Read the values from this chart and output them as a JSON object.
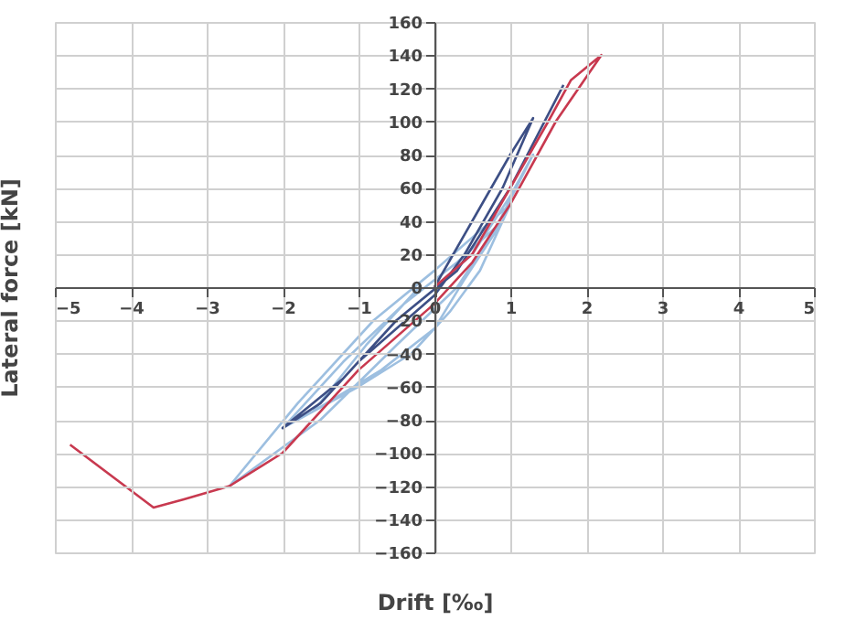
{
  "chart_data": {
    "type": "line",
    "xlabel": "Drift [‰]",
    "ylabel": "Lateral force [kN]",
    "xlim": [
      -5,
      5
    ],
    "xticks": [
      -5,
      -4,
      -3,
      -2,
      -1,
      0,
      1,
      2,
      3,
      4,
      5
    ],
    "ylim": [
      -160,
      160
    ],
    "yticks": [
      -160,
      -140,
      -120,
      -100,
      -80,
      -60,
      -40,
      -20,
      0,
      20,
      40,
      60,
      80,
      100,
      120,
      140,
      160
    ],
    "grid": true,
    "marker": "none",
    "line_style": "solid",
    "series": [
      {
        "color": "#9dbfe0",
        "x": [
          0,
          0.5,
          1,
          1.3,
          0.8,
          0.3,
          -0.5,
          -1.5,
          -2.7,
          -1.8,
          -0.8,
          0,
          0.5,
          1,
          0.6,
          0.2,
          -0.3,
          -1,
          -2,
          -1.2,
          -0.4,
          0.3,
          0.9,
          0.4,
          0,
          -0.7,
          -1.6,
          -0.9,
          -0.2
        ],
        "values": [
          0,
          20,
          55,
          80,
          35,
          0,
          -35,
          -80,
          -120,
          -70,
          -20,
          10,
          30,
          50,
          10,
          -15,
          -40,
          -60,
          -85,
          -45,
          -10,
          15,
          40,
          5,
          -25,
          -50,
          -75,
          -35,
          0
        ]
      },
      {
        "color": "#3d4f85",
        "x": [
          0,
          0.5,
          1,
          1.3,
          0.9,
          0.4,
          0,
          -0.5,
          -1,
          -1.5,
          -2,
          -1.2,
          -0.5,
          0.3,
          1,
          1.7
        ],
        "values": [
          0,
          40,
          80,
          102,
          60,
          20,
          -5,
          -25,
          -45,
          -70,
          -85,
          -55,
          -20,
          10,
          60,
          122
        ]
      },
      {
        "color": "#c8394f",
        "x": [
          0,
          0.5,
          1,
          1.5,
          1.8,
          2.2,
          1.6,
          1,
          0.5,
          0,
          -0.5,
          -1,
          -1.5,
          -2,
          -2.7,
          -3.3,
          -3.7,
          -4.8
        ],
        "values": [
          0,
          20,
          60,
          100,
          125,
          140,
          100,
          50,
          15,
          -10,
          -30,
          -50,
          -75,
          -100,
          -120,
          -128,
          -133,
          -95
        ]
      }
    ]
  }
}
